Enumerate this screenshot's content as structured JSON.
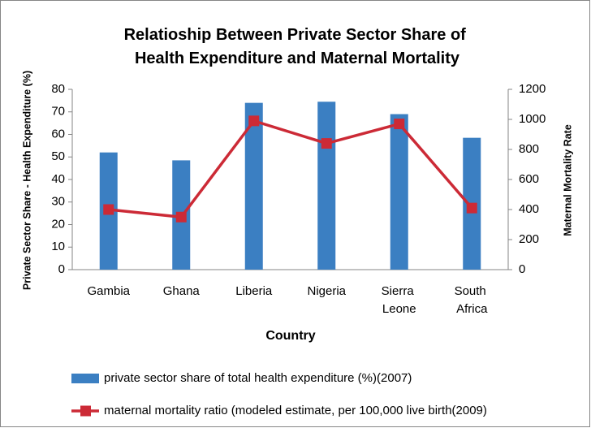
{
  "chart_data": {
    "type": "bar",
    "title": "Relatioship Between Private Sector Share of Health Expenditure and Maternal Mortality",
    "x_label": "Country",
    "y_label": "Private  Sector Share - Health Expenditure (%)",
    "y2_label": "Maternal Mortality Rate",
    "categories": [
      "Gambia",
      "Ghana",
      "Liberia",
      "Nigeria",
      "Sierra Leone",
      "South Africa"
    ],
    "series": [
      {
        "name": "private sector share of total health expenditure (%)(2007)",
        "type": "bar",
        "color": "#3b7fc2",
        "values": [
          52,
          48.5,
          74,
          74.5,
          69,
          58.5
        ]
      },
      {
        "name": "maternal mortality ratio (modeled estimate, per 100,000 live birth(2009)",
        "type": "line",
        "axis": "y2",
        "color": "#cc2a36",
        "values": [
          400,
          350,
          990,
          840,
          970,
          410
        ]
      }
    ],
    "ylim": [
      0,
      80
    ],
    "yticks": [
      0,
      10,
      20,
      30,
      40,
      50,
      60,
      70,
      80
    ],
    "y2lim": [
      0,
      1200
    ],
    "y2ticks": [
      0,
      200,
      400,
      600,
      800,
      1000,
      1200
    ],
    "legend": "bottom"
  }
}
